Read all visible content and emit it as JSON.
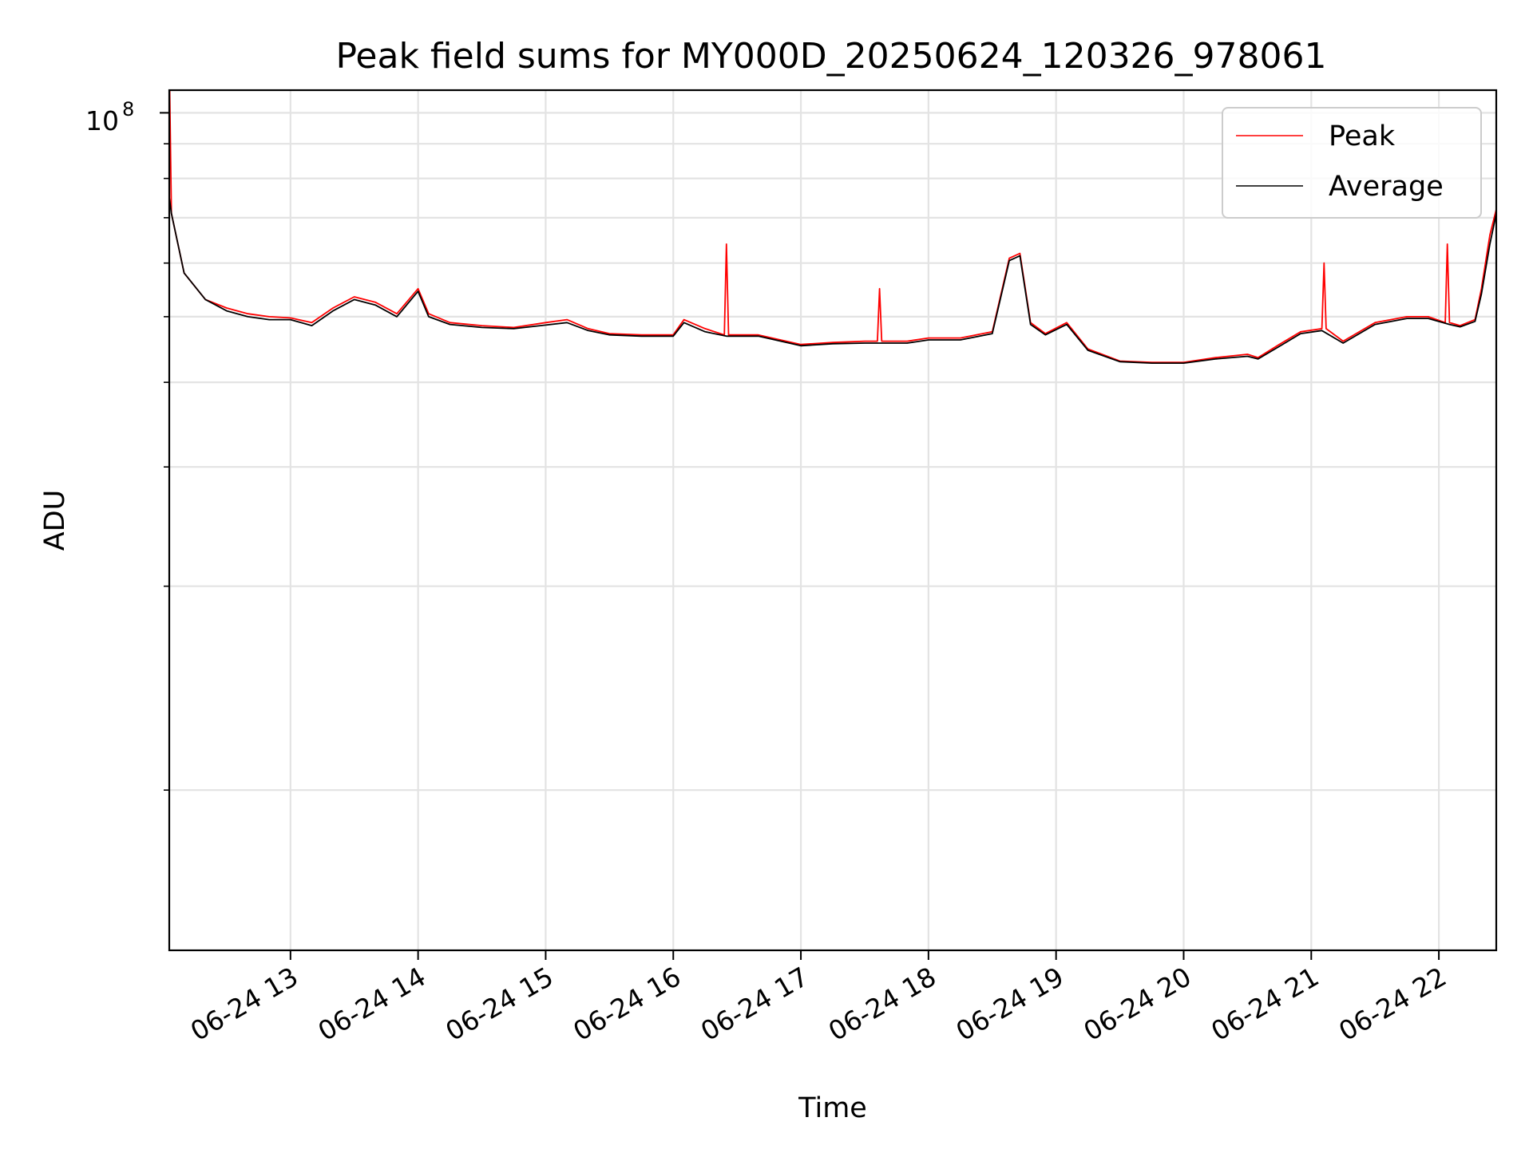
{
  "chart_data": {
    "type": "line",
    "title": "Peak field sums for MY000D_20250624_120326_978061",
    "xlabel": "Time",
    "ylabel": "ADU",
    "yscale": "log",
    "ylim": [
      5800000,
      108000000
    ],
    "xlim": [
      "2025-06-24 12:03",
      "2025-06-24 22:27"
    ],
    "x_ticks": [
      {
        "label": "06-24 13",
        "value": "2025-06-24 13:00"
      },
      {
        "label": "06-24 14",
        "value": "2025-06-24 14:00"
      },
      {
        "label": "06-24 15",
        "value": "2025-06-24 15:00"
      },
      {
        "label": "06-24 16",
        "value": "2025-06-24 16:00"
      },
      {
        "label": "06-24 17",
        "value": "2025-06-24 17:00"
      },
      {
        "label": "06-24 18",
        "value": "2025-06-24 18:00"
      },
      {
        "label": "06-24 19",
        "value": "2025-06-24 19:00"
      },
      {
        "label": "06-24 20",
        "value": "2025-06-24 20:00"
      },
      {
        "label": "06-24 21",
        "value": "2025-06-24 21:00"
      },
      {
        "label": "06-24 22",
        "value": "2025-06-24 22:00"
      }
    ],
    "y_ticks": [
      {
        "label_base": "10",
        "label_exp": "8",
        "value": 100000000
      }
    ],
    "y_minor_ticks": [
      10000000,
      20000000,
      30000000,
      40000000,
      50000000,
      60000000,
      70000000,
      80000000,
      90000000
    ],
    "grid": true,
    "legend_position": "top-right",
    "legend": [
      {
        "label": "Peak",
        "color": "#ff0000"
      },
      {
        "label": "Average",
        "color": "#000000"
      }
    ],
    "series": [
      {
        "name": "Peak",
        "color": "#ff0000",
        "x": [
          "2025-06-24 12:03",
          "2025-06-24 12:04",
          "2025-06-24 12:10",
          "2025-06-24 12:20",
          "2025-06-24 12:30",
          "2025-06-24 12:40",
          "2025-06-24 12:50",
          "2025-06-24 13:00",
          "2025-06-24 13:10",
          "2025-06-24 13:20",
          "2025-06-24 13:30",
          "2025-06-24 13:40",
          "2025-06-24 13:50",
          "2025-06-24 14:00",
          "2025-06-24 14:05",
          "2025-06-24 14:15",
          "2025-06-24 14:30",
          "2025-06-24 14:45",
          "2025-06-24 15:00",
          "2025-06-24 15:10",
          "2025-06-24 15:20",
          "2025-06-24 15:30",
          "2025-06-24 15:45",
          "2025-06-24 16:00",
          "2025-06-24 16:05",
          "2025-06-24 16:15",
          "2025-06-24 16:24",
          "2025-06-24 16:25",
          "2025-06-24 16:26",
          "2025-06-24 16:40",
          "2025-06-24 17:00",
          "2025-06-24 17:15",
          "2025-06-24 17:30",
          "2025-06-24 17:36",
          "2025-06-24 17:37",
          "2025-06-24 17:38",
          "2025-06-24 17:50",
          "2025-06-24 18:00",
          "2025-06-24 18:15",
          "2025-06-24 18:30",
          "2025-06-24 18:38",
          "2025-06-24 18:43",
          "2025-06-24 18:48",
          "2025-06-24 18:55",
          "2025-06-24 19:05",
          "2025-06-24 19:15",
          "2025-06-24 19:30",
          "2025-06-24 19:45",
          "2025-06-24 20:00",
          "2025-06-24 20:15",
          "2025-06-24 20:30",
          "2025-06-24 20:35",
          "2025-06-24 20:45",
          "2025-06-24 20:55",
          "2025-06-24 21:05",
          "2025-06-24 21:06",
          "2025-06-24 21:07",
          "2025-06-24 21:15",
          "2025-06-24 21:30",
          "2025-06-24 21:45",
          "2025-06-24 21:55",
          "2025-06-24 22:03",
          "2025-06-24 22:04",
          "2025-06-24 22:05",
          "2025-06-24 22:10",
          "2025-06-24 22:17",
          "2025-06-24 22:20",
          "2025-06-24 22:24",
          "2025-06-24 22:27"
        ],
        "y": [
          120000000,
          71000000,
          58000000,
          53000000,
          51500000,
          50500000,
          50000000,
          49800000,
          49000000,
          51500000,
          53500000,
          52500000,
          50500000,
          55000000,
          50500000,
          49000000,
          48500000,
          48200000,
          49000000,
          49500000,
          48000000,
          47200000,
          47000000,
          47000000,
          49500000,
          48000000,
          47000000,
          64000000,
          47000000,
          47000000,
          45500000,
          45800000,
          46000000,
          46000000,
          55000000,
          46000000,
          46000000,
          46500000,
          46500000,
          47500000,
          61000000,
          62000000,
          49000000,
          47200000,
          49000000,
          44800000,
          43000000,
          42800000,
          42800000,
          43500000,
          44000000,
          43500000,
          45500000,
          47500000,
          48000000,
          60000000,
          48000000,
          46000000,
          49000000,
          50000000,
          50000000,
          49000000,
          64000000,
          49000000,
          48500000,
          49500000,
          55000000,
          66000000,
          72000000
        ]
      },
      {
        "name": "Average",
        "color": "#000000",
        "x": [
          "2025-06-24 12:03",
          "2025-06-24 12:04",
          "2025-06-24 12:10",
          "2025-06-24 12:20",
          "2025-06-24 12:30",
          "2025-06-24 12:40",
          "2025-06-24 12:50",
          "2025-06-24 13:00",
          "2025-06-24 13:10",
          "2025-06-24 13:20",
          "2025-06-24 13:30",
          "2025-06-24 13:40",
          "2025-06-24 13:50",
          "2025-06-24 14:00",
          "2025-06-24 14:05",
          "2025-06-24 14:15",
          "2025-06-24 14:30",
          "2025-06-24 14:45",
          "2025-06-24 15:00",
          "2025-06-24 15:10",
          "2025-06-24 15:20",
          "2025-06-24 15:30",
          "2025-06-24 15:45",
          "2025-06-24 16:00",
          "2025-06-24 16:05",
          "2025-06-24 16:15",
          "2025-06-24 16:25",
          "2025-06-24 16:40",
          "2025-06-24 17:00",
          "2025-06-24 17:15",
          "2025-06-24 17:30",
          "2025-06-24 17:50",
          "2025-06-24 18:00",
          "2025-06-24 18:15",
          "2025-06-24 18:30",
          "2025-06-24 18:38",
          "2025-06-24 18:43",
          "2025-06-24 18:48",
          "2025-06-24 18:55",
          "2025-06-24 19:05",
          "2025-06-24 19:15",
          "2025-06-24 19:30",
          "2025-06-24 19:45",
          "2025-06-24 20:00",
          "2025-06-24 20:15",
          "2025-06-24 20:30",
          "2025-06-24 20:35",
          "2025-06-24 20:45",
          "2025-06-24 20:55",
          "2025-06-24 21:05",
          "2025-06-24 21:15",
          "2025-06-24 21:30",
          "2025-06-24 21:45",
          "2025-06-24 21:55",
          "2025-06-24 22:05",
          "2025-06-24 22:10",
          "2025-06-24 22:17",
          "2025-06-24 22:20",
          "2025-06-24 22:24",
          "2025-06-24 22:27"
        ],
        "y": [
          75000000,
          71000000,
          58000000,
          53000000,
          51000000,
          50000000,
          49500000,
          49500000,
          48500000,
          51000000,
          53000000,
          52000000,
          50000000,
          54500000,
          50000000,
          48700000,
          48200000,
          48000000,
          48600000,
          49000000,
          47700000,
          47000000,
          46800000,
          46800000,
          49000000,
          47500000,
          46800000,
          46800000,
          45300000,
          45600000,
          45700000,
          45700000,
          46200000,
          46200000,
          47200000,
          60500000,
          61500000,
          48700000,
          47000000,
          48700000,
          44600000,
          42900000,
          42700000,
          42700000,
          43300000,
          43700000,
          43300000,
          45200000,
          47200000,
          47700000,
          45700000,
          48700000,
          49700000,
          49700000,
          48700000,
          48300000,
          49200000,
          54000000,
          64000000,
          71000000
        ]
      }
    ]
  }
}
